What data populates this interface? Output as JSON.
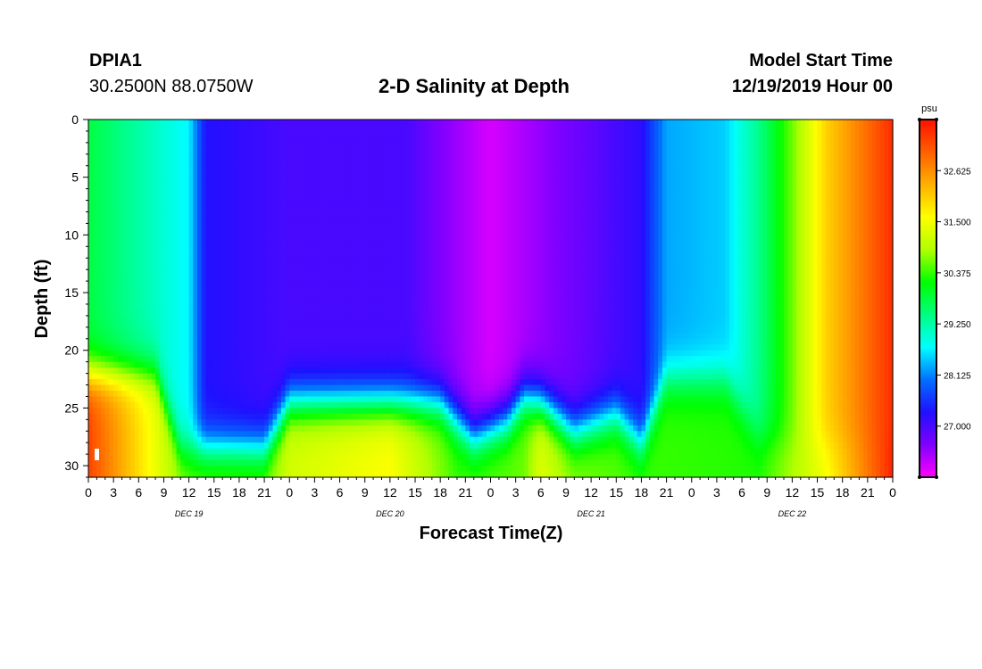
{
  "header": {
    "station_id": "DPIA1",
    "station_coords": "30.2500N 88.0750W",
    "title": "2-D Salinity at Depth",
    "model_start_label": "Model Start Time",
    "model_start_value": "12/19/2019 Hour 00"
  },
  "chart_data": {
    "type": "heatmap",
    "title": "2-D Salinity at Depth",
    "xlabel": "Forecast Time(Z)",
    "ylabel": "Depth (ft)",
    "x_range_hours": [
      0,
      96
    ],
    "y_range_ft": [
      0,
      31
    ],
    "x_ticks": [
      "0",
      "3",
      "6",
      "9",
      "12",
      "15",
      "18",
      "21",
      "0",
      "3",
      "6",
      "9",
      "12",
      "15",
      "18",
      "21",
      "0",
      "3",
      "6",
      "9",
      "12",
      "15",
      "18",
      "21",
      "0",
      "3",
      "6",
      "9",
      "12",
      "15",
      "18",
      "21",
      "0"
    ],
    "day_labels": [
      {
        "label": "DEC 19",
        "hour": 12
      },
      {
        "label": "DEC 20",
        "hour": 36
      },
      {
        "label": "DEC 21",
        "hour": 60
      },
      {
        "label": "DEC 22",
        "hour": 84
      }
    ],
    "y_ticks": [
      0,
      5,
      10,
      15,
      20,
      25,
      30
    ],
    "colorbar": {
      "unit": "psu",
      "range": [
        25.875,
        33.75
      ],
      "tick_values": [
        27.0,
        28.125,
        29.25,
        30.375,
        31.5,
        32.625
      ],
      "tick_labels": [
        "27.000",
        "28.125",
        "29.250",
        "30.375",
        "31.500",
        "32.625"
      ],
      "colors": [
        "#ff00ff",
        "#8000ff",
        "#2010ff",
        "#0070ff",
        "#00ffff",
        "#00ff80",
        "#00ff00",
        "#b0ff00",
        "#ffff00",
        "#ffb000",
        "#ff6000",
        "#ff1000"
      ]
    },
    "surface_salinity_profile": [
      {
        "hour": 0,
        "value": 29.8
      },
      {
        "hour": 12,
        "value": 28.7
      },
      {
        "hour": 14,
        "value": 27.3
      },
      {
        "hour": 24,
        "value": 27.0
      },
      {
        "hour": 38,
        "value": 27.0
      },
      {
        "hour": 42,
        "value": 26.6
      },
      {
        "hour": 48,
        "value": 26.1
      },
      {
        "hour": 56,
        "value": 26.6
      },
      {
        "hour": 66,
        "value": 27.2
      },
      {
        "hour": 69,
        "value": 28.3
      },
      {
        "hour": 76,
        "value": 28.5
      },
      {
        "hour": 80,
        "value": 29.4
      },
      {
        "hour": 84,
        "value": 30.6
      },
      {
        "hour": 88,
        "value": 32.0
      },
      {
        "hour": 96,
        "value": 33.5
      }
    ],
    "bottom_salinity_profile": [
      {
        "hour": 0,
        "value": 33.3
      },
      {
        "hour": 9,
        "value": 31.2
      },
      {
        "hour": 12,
        "value": 30.6
      },
      {
        "hour": 21,
        "value": 30.6
      },
      {
        "hour": 24,
        "value": 31.2
      },
      {
        "hour": 36,
        "value": 31.6
      },
      {
        "hour": 44,
        "value": 30.4
      },
      {
        "hour": 52,
        "value": 30.6
      },
      {
        "hour": 54,
        "value": 31.3
      },
      {
        "hour": 58,
        "value": 30.7
      },
      {
        "hour": 66,
        "value": 30.4
      },
      {
        "hour": 80,
        "value": 30.3
      },
      {
        "hour": 88,
        "value": 31.5
      },
      {
        "hour": 96,
        "value": 33.6
      }
    ],
    "halocline_depth_profile": [
      {
        "hour": 0,
        "value": 22
      },
      {
        "hour": 8,
        "value": 22
      },
      {
        "hour": 11,
        "value": 28.5
      },
      {
        "hour": 21,
        "value": 28.5
      },
      {
        "hour": 24,
        "value": 24.5
      },
      {
        "hour": 42,
        "value": 24.5
      },
      {
        "hour": 46,
        "value": 27.5
      },
      {
        "hour": 50,
        "value": 26
      },
      {
        "hour": 52,
        "value": 24
      },
      {
        "hour": 54,
        "value": 24.5
      },
      {
        "hour": 58,
        "value": 27
      },
      {
        "hour": 63,
        "value": 25.5
      },
      {
        "hour": 66,
        "value": 28
      },
      {
        "hour": 69,
        "value": 22.5
      },
      {
        "hour": 76,
        "value": 22.5
      },
      {
        "hour": 80,
        "value": 27.5
      },
      {
        "hour": 84,
        "value": 28
      },
      {
        "hour": 96,
        "value": 28
      }
    ]
  }
}
